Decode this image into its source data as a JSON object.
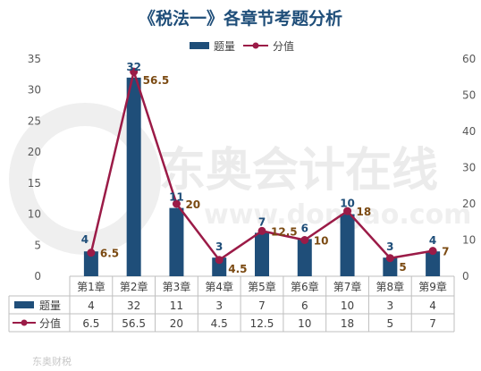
{
  "title": "《税法一》各章节考题分析",
  "legend": {
    "bars": "题量",
    "line": "分值"
  },
  "watermark": {
    "brand": "东奥会计在线",
    "domain": "www.dongao.com",
    "footer": "东奥财税"
  },
  "colors": {
    "bar": "#1f4e79",
    "line": "#9b1b47",
    "barLabel": "#1f4e79",
    "lineLabel": "#7b4a12"
  },
  "chart_data": {
    "type": "bar",
    "title": "《税法一》各章节考题分析",
    "categories": [
      "第1章",
      "第2章",
      "第3章",
      "第4章",
      "第5章",
      "第6章",
      "第7章",
      "第8章",
      "第9章"
    ],
    "series": [
      {
        "name": "题量",
        "type": "bar",
        "axis": "left",
        "values": [
          4,
          32,
          11,
          3,
          7,
          6,
          10,
          3,
          4
        ]
      },
      {
        "name": "分值",
        "type": "line",
        "axis": "right",
        "values": [
          6.5,
          56.5,
          20,
          4.5,
          12.5,
          10,
          18,
          5,
          7
        ]
      }
    ],
    "ylim_left": [
      0,
      35
    ],
    "yticks_left": [
      0,
      5,
      10,
      15,
      20,
      25,
      30,
      35
    ],
    "ylim_right": [
      0,
      60
    ],
    "yticks_right": [
      0,
      10,
      20,
      30,
      40,
      50,
      60
    ],
    "grid": false,
    "legend": "top",
    "data_table": true
  }
}
